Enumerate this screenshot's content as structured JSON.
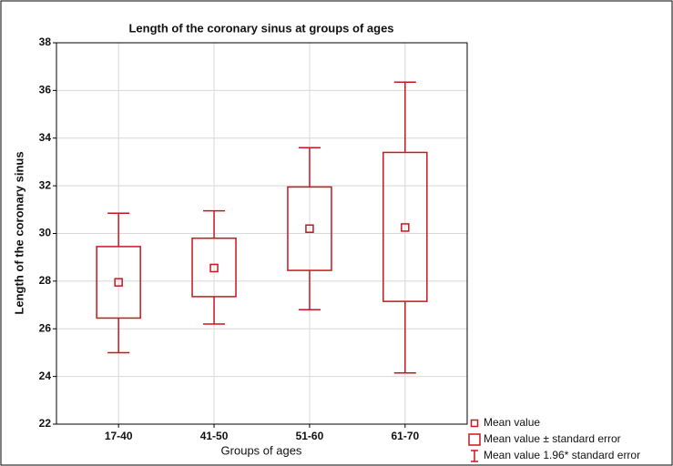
{
  "chart_data": {
    "type": "box",
    "title": "Length of the coronary sinus at groups of ages",
    "x_label": "Groups of ages",
    "y_label": "Length of the coronary sinus",
    "categories": [
      "17-40",
      "41-50",
      "51-60",
      "61-70"
    ],
    "color": "#c8161d",
    "mean": [
      27.95,
      28.55,
      30.2,
      30.25
    ],
    "se_low": [
      26.45,
      27.35,
      28.45,
      27.15
    ],
    "se_high": [
      29.45,
      29.8,
      31.95,
      33.4
    ],
    "ci_low": [
      25.0,
      26.2,
      26.8,
      24.15
    ],
    "ci_high": [
      30.85,
      30.95,
      33.6,
      36.35
    ],
    "ylim": [
      22,
      38
    ],
    "yticks": [
      22,
      24,
      26,
      28,
      30,
      32,
      34,
      36,
      38
    ],
    "grid": true,
    "legend": [
      "Mean value",
      "Mean value ± standard error",
      "Mean value 1.96* standard error"
    ]
  }
}
